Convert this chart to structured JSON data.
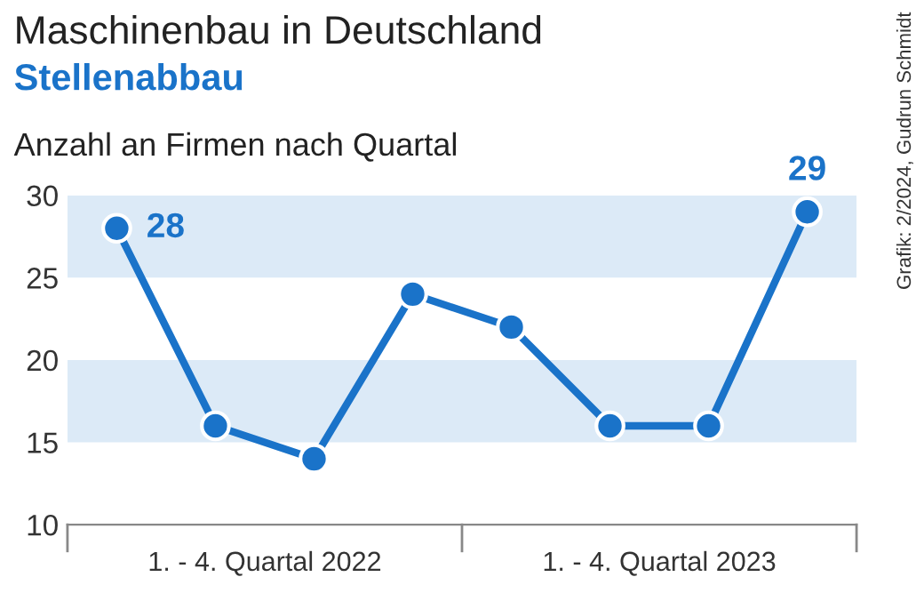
{
  "chart_data": {
    "type": "line",
    "title": "Maschinenbau in Deutschland",
    "subtitle": "Stellenabbau",
    "ylabel": "Anzahl an Firmen nach Quartal",
    "categories": [
      null,
      null,
      null,
      null,
      null,
      null,
      null,
      null
    ],
    "series": [
      {
        "color": "#1a73c9",
        "values": [
          28,
          16,
          14,
          24,
          22,
          16,
          16,
          29
        ],
        "value_labels": [
          "28",
          null,
          null,
          null,
          null,
          null,
          null,
          "29"
        ]
      }
    ],
    "ylim": [
      10,
      30
    ],
    "yticks": [
      10,
      15,
      20,
      25,
      30
    ],
    "marker": "circle",
    "line_style": "solid",
    "grid": false,
    "legend": false,
    "bands": [
      {
        "axis": "y",
        "from": 25,
        "to": 30,
        "color": "#dceaf7"
      },
      {
        "axis": "y",
        "from": 15,
        "to": 20,
        "color": "#dceaf7"
      }
    ],
    "annotations": [
      "1. - 4. Quartal 2022",
      "1. - 4. Quartal 2023",
      "Grafik: 2/2024, Gudrun Schmidt"
    ]
  }
}
